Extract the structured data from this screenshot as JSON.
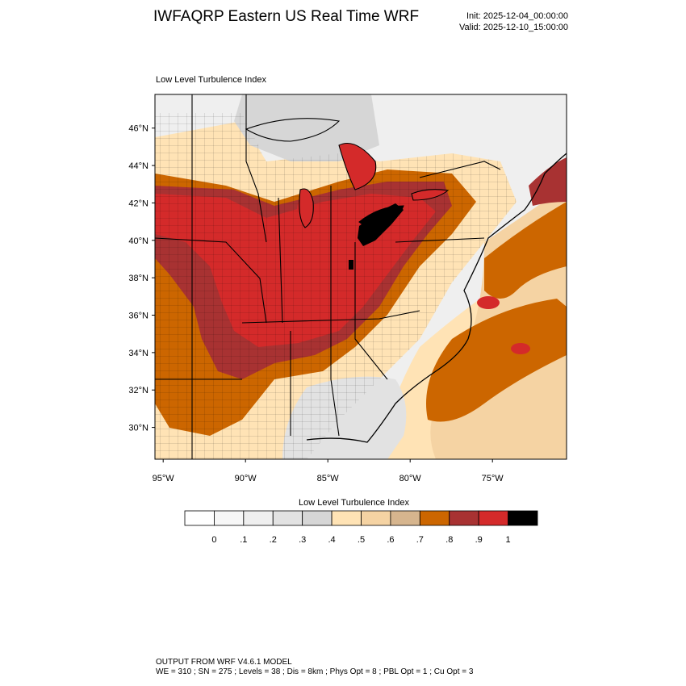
{
  "header": {
    "title": "IWFAQRP Eastern US Real Time WRF",
    "init": "Init: 2025-12-04_00:00:00",
    "valid": "Valid: 2025-12-10_15:00:00"
  },
  "map": {
    "subtitle": "Low Level Turbulence Index",
    "lat_labels": [
      "46°N",
      "44°N",
      "42°N",
      "40°N",
      "38°N",
      "36°N",
      "34°N",
      "32°N",
      "30°N"
    ],
    "lon_labels": [
      "95°W",
      "90°W",
      "85°W",
      "80°W",
      "75°W"
    ],
    "extent": {
      "lon_min": -95.5,
      "lon_max": -70.5,
      "lat_min": 28.3,
      "lat_max": 47.8
    }
  },
  "colorbar": {
    "title": "Low Level Turbulence Index",
    "colors": [
      "#ffffff",
      "#f7f7f7",
      "#efefef",
      "#e2e2e2",
      "#d6d6d6",
      "#ffe3b5",
      "#f5d3a3",
      "#d6b58e",
      "#cc6600",
      "#a83232",
      "#d42a2a",
      "#000000"
    ],
    "tick_labels": [
      "0",
      ".1",
      ".2",
      ".3",
      ".4",
      ".5",
      ".6",
      ".7",
      ".8",
      ".9",
      "1"
    ]
  },
  "footer": {
    "line1": "OUTPUT FROM WRF V4.6.1 MODEL",
    "line2": "WE = 310 ; SN = 275 ; Levels = 38 ; Dis = 8km ; Phys Opt = 8 ; PBL Opt = 1 ; Cu Opt = 3"
  }
}
